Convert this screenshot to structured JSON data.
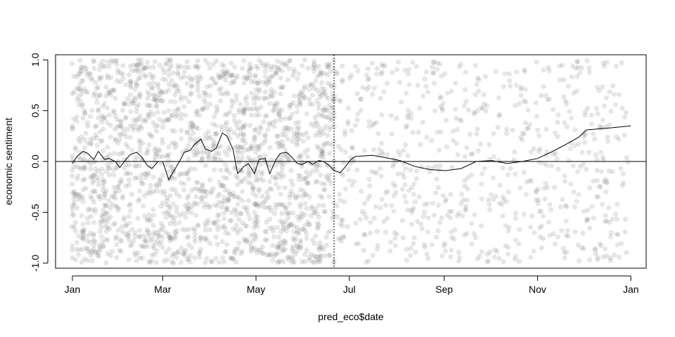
{
  "chart_data": {
    "type": "scatter",
    "title": "",
    "xlabel": "pred_eco$date",
    "ylabel": "economic sentiment",
    "x_tick_labels": [
      "Jan",
      "Mar",
      "May",
      "Jul",
      "Sep",
      "Nov",
      "Jan"
    ],
    "x_tick_dates": [
      "2019-01-01",
      "2019-03-01",
      "2019-05-01",
      "2019-07-01",
      "2019-09-01",
      "2019-11-01",
      "2020-01-01"
    ],
    "y_tick_labels": [
      "-1.0",
      "-0.5",
      "0.0",
      "0.5",
      "1.0"
    ],
    "y_ticks": [
      -1.0,
      -0.5,
      0.0,
      0.5,
      1.0
    ],
    "xlim": [
      "2018-12-21",
      "2020-01-11"
    ],
    "ylim": [
      -1.05,
      1.05
    ],
    "reference_hline": 0,
    "reference_vline": "2019-06-21",
    "grid": false,
    "legend": "none",
    "scatter_description": "semi-transparent grey points spread uniformly over y in [-1, 1]; dense from Jan to the dotted line in late June, sparse afterwards",
    "point_color": "#777777",
    "smooth_series": {
      "dates": [
        "2019-01-01",
        "2019-01-04",
        "2019-01-08",
        "2019-01-11",
        "2019-01-15",
        "2019-01-18",
        "2019-01-22",
        "2019-01-25",
        "2019-01-29",
        "2019-02-01",
        "2019-02-05",
        "2019-02-08",
        "2019-02-12",
        "2019-02-15",
        "2019-02-19",
        "2019-02-22",
        "2019-02-26",
        "2019-03-01",
        "2019-03-05",
        "2019-03-08",
        "2019-03-12",
        "2019-03-15",
        "2019-03-19",
        "2019-03-22",
        "2019-03-26",
        "2019-03-29",
        "2019-04-02",
        "2019-04-05",
        "2019-04-09",
        "2019-04-12",
        "2019-04-16",
        "2019-04-19",
        "2019-04-23",
        "2019-04-26",
        "2019-04-30",
        "2019-05-03",
        "2019-05-07",
        "2019-05-10",
        "2019-05-14",
        "2019-05-17",
        "2019-05-21",
        "2019-05-24",
        "2019-05-28",
        "2019-05-31",
        "2019-06-04",
        "2019-06-07",
        "2019-06-11",
        "2019-06-14",
        "2019-06-18",
        "2019-06-21",
        "2019-06-25",
        "2019-06-28",
        "2019-07-02",
        "2019-07-05",
        "2019-07-16",
        "2019-07-24",
        "2019-08-03",
        "2019-08-13",
        "2019-08-23",
        "2019-09-02",
        "2019-09-12",
        "2019-09-22",
        "2019-10-02",
        "2019-10-12",
        "2019-10-22",
        "2019-11-01",
        "2019-11-11",
        "2019-11-21",
        "2019-11-28",
        "2019-12-03",
        "2019-12-10",
        "2019-12-18",
        "2019-12-25",
        "2020-01-01"
      ],
      "values": [
        -0.02,
        0.05,
        0.1,
        0.08,
        0.02,
        0.1,
        0.02,
        0.03,
        0.0,
        -0.06,
        0.02,
        0.07,
        0.09,
        0.05,
        -0.04,
        -0.07,
        0.0,
        0.0,
        -0.18,
        -0.1,
        0.0,
        0.09,
        0.11,
        0.17,
        0.22,
        0.12,
        0.1,
        0.13,
        0.28,
        0.25,
        0.12,
        -0.12,
        -0.05,
        -0.02,
        -0.12,
        0.02,
        0.03,
        -0.12,
        0.02,
        0.08,
        0.09,
        0.05,
        -0.02,
        -0.03,
        0.0,
        -0.03,
        0.01,
        0.0,
        -0.04,
        -0.09,
        -0.11,
        -0.06,
        0.02,
        0.05,
        0.06,
        0.04,
        0.01,
        -0.05,
        -0.08,
        -0.09,
        -0.07,
        0.0,
        0.01,
        -0.02,
        0.0,
        0.03,
        0.1,
        0.18,
        0.24,
        0.31,
        0.32,
        0.33,
        0.34,
        0.35
      ]
    },
    "scatter_sample_count": 2600
  }
}
